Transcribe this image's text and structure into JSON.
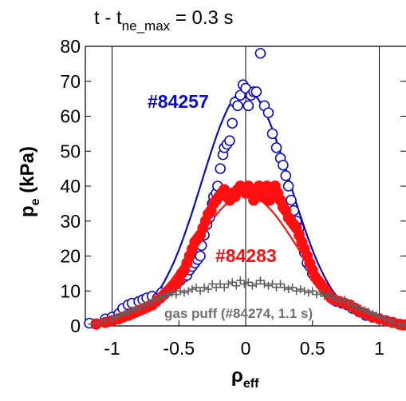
{
  "chart_data": {
    "type": "scatter",
    "title": {
      "prefix": "t - t",
      "subscript": "ne_max",
      "suffix": " = 0.3 s"
    },
    "xlabel": {
      "base": "ρ",
      "subscript": "eff"
    },
    "ylabel": {
      "base": "p",
      "subscript": "e",
      "suffix": " (kPa)"
    },
    "xlim": [
      -1.2,
      1.2
    ],
    "ylim": [
      0,
      80
    ],
    "xticks": [
      -1,
      -0.5,
      0,
      0.5,
      1
    ],
    "xtick_labels": [
      "-1",
      "-0.5",
      "0",
      "0.5",
      "1"
    ],
    "yticks": [
      0,
      10,
      20,
      30,
      40,
      50,
      60,
      70,
      80
    ],
    "ytick_labels": [
      "0",
      "10",
      "20",
      "30",
      "40",
      "50",
      "60",
      "70",
      "80"
    ],
    "vertical_lines_x": [
      -1,
      0,
      1
    ],
    "series": [
      {
        "name": "#84257",
        "color": "#0a0ac8",
        "marker": "open-circle",
        "fit_peak": 67,
        "fit_width": 0.33,
        "fit_base": 0.5,
        "points": [
          [
            -1.17,
            0.8
          ],
          [
            -1.12,
            0.6
          ],
          [
            -1.05,
            2
          ],
          [
            -1.0,
            2.5
          ],
          [
            -0.95,
            3.5
          ],
          [
            -0.92,
            5
          ],
          [
            -0.88,
            6
          ],
          [
            -0.85,
            6.5
          ],
          [
            -0.8,
            7
          ],
          [
            -0.77,
            7.5
          ],
          [
            -0.74,
            8
          ],
          [
            -0.7,
            8.5
          ],
          [
            -0.66,
            8
          ],
          [
            -0.63,
            9.5
          ],
          [
            -0.58,
            10
          ],
          [
            -0.55,
            11
          ],
          [
            -0.52,
            12
          ],
          [
            -0.49,
            13
          ],
          [
            -0.46,
            14
          ],
          [
            -0.44,
            14.5
          ],
          [
            -0.42,
            16
          ],
          [
            -0.4,
            17
          ],
          [
            -0.38,
            18
          ],
          [
            -0.36,
            19
          ],
          [
            -0.34,
            20
          ],
          [
            -0.33,
            23
          ],
          [
            -0.31,
            26
          ],
          [
            -0.29,
            29
          ],
          [
            -0.27,
            31
          ],
          [
            -0.25,
            35
          ],
          [
            -0.24,
            37
          ],
          [
            -0.22,
            38
          ],
          [
            -0.21,
            40
          ],
          [
            -0.19,
            45
          ],
          [
            -0.17,
            49
          ],
          [
            -0.16,
            51
          ],
          [
            -0.14,
            52
          ],
          [
            -0.12,
            53
          ],
          [
            -0.1,
            58
          ],
          [
            -0.08,
            64
          ],
          [
            -0.06,
            63
          ],
          [
            -0.04,
            66
          ],
          [
            -0.02,
            69
          ],
          [
            0.0,
            68
          ],
          [
            0.02,
            63
          ],
          [
            0.04,
            66
          ],
          [
            0.06,
            67
          ],
          [
            0.08,
            67
          ],
          [
            0.11,
            78
          ],
          [
            0.14,
            63
          ],
          [
            0.17,
            61
          ],
          [
            0.2,
            55
          ],
          [
            0.23,
            51
          ],
          [
            0.26,
            48
          ],
          [
            0.28,
            46
          ],
          [
            0.3,
            43
          ],
          [
            0.32,
            40
          ],
          [
            0.34,
            36
          ],
          [
            0.36,
            33
          ],
          [
            0.38,
            30
          ],
          [
            0.4,
            28
          ],
          [
            0.42,
            24
          ],
          [
            0.44,
            21
          ],
          [
            0.46,
            18
          ],
          [
            0.48,
            17
          ],
          [
            0.5,
            15
          ],
          [
            0.52,
            14
          ],
          [
            0.54,
            13
          ],
          [
            0.56,
            12
          ],
          [
            0.58,
            11
          ],
          [
            0.6,
            10
          ],
          [
            0.62,
            9
          ],
          [
            0.65,
            8
          ],
          [
            0.68,
            7
          ],
          [
            0.72,
            6.5
          ],
          [
            0.76,
            6
          ],
          [
            0.8,
            5
          ],
          [
            0.85,
            4
          ],
          [
            0.9,
            3
          ],
          [
            0.95,
            2.5
          ],
          [
            1.0,
            2
          ],
          [
            1.05,
            1.5
          ],
          [
            1.1,
            1
          ],
          [
            1.15,
            0.5
          ],
          [
            1.19,
            0.3
          ]
        ]
      },
      {
        "name": "#84283",
        "color": "#ff1010",
        "marker": "filled-circle",
        "fit_peak": 37,
        "fit_width": 0.38,
        "fit_base": 0.5,
        "points": [
          [
            -1.12,
            0.5
          ],
          [
            -1.05,
            1
          ],
          [
            -1.0,
            1.5
          ],
          [
            -0.95,
            2
          ],
          [
            -0.92,
            2.5
          ],
          [
            -0.88,
            3
          ],
          [
            -0.85,
            3.5
          ],
          [
            -0.82,
            4
          ],
          [
            -0.79,
            4.5
          ],
          [
            -0.76,
            5
          ],
          [
            -0.73,
            5.5
          ],
          [
            -0.7,
            6
          ],
          [
            -0.67,
            7
          ],
          [
            -0.64,
            8
          ],
          [
            -0.61,
            9
          ],
          [
            -0.58,
            10
          ],
          [
            -0.55,
            11
          ],
          [
            -0.52,
            12
          ],
          [
            -0.5,
            13
          ],
          [
            -0.48,
            15
          ],
          [
            -0.46,
            16
          ],
          [
            -0.44,
            18
          ],
          [
            -0.42,
            20
          ],
          [
            -0.4,
            22
          ],
          [
            -0.38,
            24
          ],
          [
            -0.36,
            25
          ],
          [
            -0.34,
            26
          ],
          [
            -0.32,
            28
          ],
          [
            -0.3,
            30
          ],
          [
            -0.28,
            32
          ],
          [
            -0.26,
            33
          ],
          [
            -0.24,
            35
          ],
          [
            -0.22,
            36
          ],
          [
            -0.2,
            37
          ],
          [
            -0.18,
            38
          ],
          [
            -0.16,
            39
          ],
          [
            -0.14,
            37
          ],
          [
            -0.12,
            36
          ],
          [
            -0.1,
            38
          ],
          [
            -0.08,
            37
          ],
          [
            -0.06,
            39
          ],
          [
            -0.04,
            40
          ],
          [
            -0.02,
            39
          ],
          [
            0.0,
            38
          ],
          [
            0.02,
            40
          ],
          [
            0.04,
            38
          ],
          [
            0.06,
            36
          ],
          [
            0.08,
            39
          ],
          [
            0.1,
            40
          ],
          [
            0.12,
            37
          ],
          [
            0.14,
            39
          ],
          [
            0.16,
            40
          ],
          [
            0.18,
            36
          ],
          [
            0.2,
            38
          ],
          [
            0.22,
            40
          ],
          [
            0.24,
            38
          ],
          [
            0.26,
            36
          ],
          [
            0.28,
            34
          ],
          [
            0.3,
            33
          ],
          [
            0.32,
            31
          ],
          [
            0.34,
            30
          ],
          [
            0.36,
            29
          ],
          [
            0.38,
            28
          ],
          [
            0.4,
            26
          ],
          [
            0.42,
            24
          ],
          [
            0.44,
            22
          ],
          [
            0.46,
            20
          ],
          [
            0.48,
            18
          ],
          [
            0.5,
            16
          ],
          [
            0.52,
            14
          ],
          [
            0.54,
            13
          ],
          [
            0.56,
            12
          ],
          [
            0.58,
            11
          ],
          [
            0.6,
            10
          ],
          [
            0.62,
            9
          ],
          [
            0.64,
            8
          ],
          [
            0.66,
            7.5
          ],
          [
            0.7,
            7
          ],
          [
            0.74,
            6.5
          ],
          [
            0.78,
            6
          ],
          [
            0.82,
            5
          ],
          [
            0.86,
            4
          ],
          [
            0.9,
            3.5
          ],
          [
            0.95,
            2.5
          ],
          [
            1.0,
            2
          ],
          [
            1.05,
            1.5
          ],
          [
            1.1,
            1
          ],
          [
            1.15,
            0.5
          ],
          [
            1.18,
            0.3
          ]
        ]
      },
      {
        "name": "gas puff (#84274, 1.1 s)",
        "color": "#606060",
        "marker": "plus",
        "fit_peak": 11,
        "fit_width": 0.52,
        "fit_base": 0.3,
        "points": [
          [
            -1.15,
            0.5
          ],
          [
            -1.1,
            1
          ],
          [
            -1.05,
            1.5
          ],
          [
            -1.0,
            2
          ],
          [
            -0.97,
            2.5
          ],
          [
            -0.94,
            3
          ],
          [
            -0.91,
            3.5
          ],
          [
            -0.88,
            4
          ],
          [
            -0.85,
            4.5
          ],
          [
            -0.82,
            5
          ],
          [
            -0.79,
            5.5
          ],
          [
            -0.76,
            6
          ],
          [
            -0.73,
            6.5
          ],
          [
            -0.7,
            7
          ],
          [
            -0.67,
            7.5
          ],
          [
            -0.64,
            8
          ],
          [
            -0.61,
            8.5
          ],
          [
            -0.58,
            9
          ],
          [
            -0.55,
            9.5
          ],
          [
            -0.52,
            9
          ],
          [
            -0.49,
            10
          ],
          [
            -0.46,
            9.5
          ],
          [
            -0.43,
            10
          ],
          [
            -0.4,
            10.5
          ],
          [
            -0.37,
            11
          ],
          [
            -0.34,
            10
          ],
          [
            -0.31,
            11
          ],
          [
            -0.28,
            10.5
          ],
          [
            -0.25,
            12
          ],
          [
            -0.22,
            11
          ],
          [
            -0.19,
            12
          ],
          [
            -0.16,
            11
          ],
          [
            -0.13,
            12
          ],
          [
            -0.1,
            12.5
          ],
          [
            -0.07,
            11.5
          ],
          [
            -0.04,
            13
          ],
          [
            -0.01,
            12
          ],
          [
            0.02,
            12.5
          ],
          [
            0.05,
            11.5
          ],
          [
            0.08,
            12
          ],
          [
            0.11,
            13
          ],
          [
            0.14,
            12
          ],
          [
            0.17,
            11.5
          ],
          [
            0.2,
            12
          ],
          [
            0.23,
            11
          ],
          [
            0.26,
            12
          ],
          [
            0.29,
            11
          ],
          [
            0.32,
            10.5
          ],
          [
            0.35,
            11
          ],
          [
            0.38,
            10
          ],
          [
            0.41,
            10.5
          ],
          [
            0.44,
            10
          ],
          [
            0.47,
            9.5
          ],
          [
            0.5,
            10
          ],
          [
            0.53,
            9
          ],
          [
            0.56,
            9.5
          ],
          [
            0.59,
            8.5
          ],
          [
            0.62,
            9
          ],
          [
            0.65,
            8
          ],
          [
            0.68,
            7.5
          ],
          [
            0.71,
            7
          ],
          [
            0.74,
            7.5
          ],
          [
            0.77,
            6.5
          ],
          [
            0.8,
            6
          ],
          [
            0.83,
            5.5
          ],
          [
            0.86,
            5
          ],
          [
            0.89,
            4.5
          ],
          [
            0.92,
            4
          ],
          [
            0.95,
            3.5
          ],
          [
            0.98,
            3
          ],
          [
            1.01,
            2.5
          ],
          [
            1.04,
            2
          ],
          [
            1.07,
            1.5
          ],
          [
            1.1,
            1
          ],
          [
            1.15,
            0.5
          ],
          [
            1.19,
            0.3
          ]
        ]
      }
    ]
  }
}
